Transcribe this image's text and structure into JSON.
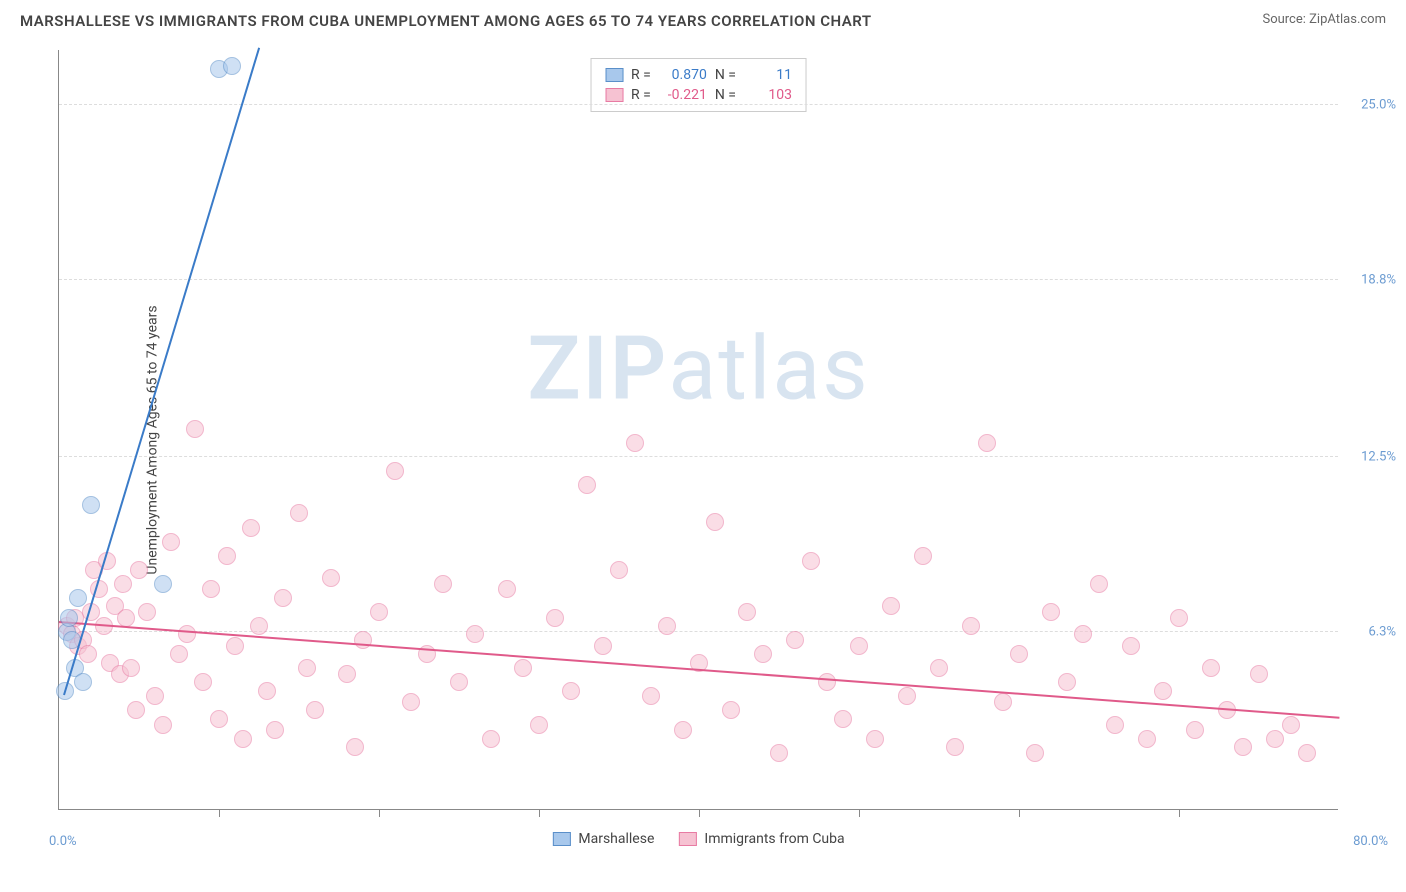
{
  "header": {
    "title": "MARSHALLESE VS IMMIGRANTS FROM CUBA UNEMPLOYMENT AMONG AGES 65 TO 74 YEARS CORRELATION CHART",
    "source": "Source: ZipAtlas.com"
  },
  "chart": {
    "type": "scatter",
    "ylabel": "Unemployment Among Ages 65 to 74 years",
    "xlim": [
      0,
      80
    ],
    "ylim": [
      0,
      27
    ],
    "xlabel_min": "0.0%",
    "xlabel_max": "80.0%",
    "ytick_labels": [
      "6.3%",
      "12.5%",
      "18.8%",
      "25.0%"
    ],
    "ytick_values": [
      6.3,
      12.5,
      18.8,
      25.0
    ],
    "xtick_positions": [
      10,
      20,
      30,
      40,
      50,
      60,
      70
    ],
    "background_color": "#ffffff",
    "grid_color": "#dddddd",
    "axis_color": "#888888",
    "tick_label_color": "#6b9bd1",
    "marker_radius": 9,
    "marker_stroke_width": 1.5,
    "trend_line_width": 2,
    "watermark": "ZIPatlas",
    "series": [
      {
        "name": "Marshallese",
        "fill_color": "#a8c8ec",
        "stroke_color": "#5a8fc9",
        "fill_opacity": 0.55,
        "stats": {
          "R_label": "R =",
          "R": "0.870",
          "N_label": "N =",
          "N": "11"
        },
        "stats_color": "#3a7bc8",
        "trend": {
          "x1": 0.3,
          "y1": 4.0,
          "x2": 12.5,
          "y2": 27.0,
          "color": "#3a7bc8"
        },
        "points": [
          [
            0.4,
            4.2
          ],
          [
            0.5,
            6.3
          ],
          [
            0.6,
            6.8
          ],
          [
            0.8,
            6.0
          ],
          [
            1.0,
            5.0
          ],
          [
            1.2,
            7.5
          ],
          [
            1.5,
            4.5
          ],
          [
            2.0,
            10.8
          ],
          [
            6.5,
            8.0
          ],
          [
            10.0,
            26.3
          ],
          [
            10.8,
            26.4
          ]
        ]
      },
      {
        "name": "Immigrants from Cuba",
        "fill_color": "#f6c2d2",
        "stroke_color": "#e87ba3",
        "fill_opacity": 0.55,
        "stats": {
          "R_label": "R =",
          "R": "-0.221",
          "N_label": "N =",
          "N": "103"
        },
        "stats_color": "#e05a8a",
        "trend": {
          "x1": 0,
          "y1": 6.6,
          "x2": 80,
          "y2": 3.2,
          "color": "#e05a8a"
        },
        "points": [
          [
            0.5,
            6.5
          ],
          [
            0.8,
            6.2
          ],
          [
            1.0,
            6.8
          ],
          [
            1.2,
            5.8
          ],
          [
            1.5,
            6.0
          ],
          [
            1.8,
            5.5
          ],
          [
            2.0,
            7.0
          ],
          [
            2.2,
            8.5
          ],
          [
            2.5,
            7.8
          ],
          [
            2.8,
            6.5
          ],
          [
            3.0,
            8.8
          ],
          [
            3.2,
            5.2
          ],
          [
            3.5,
            7.2
          ],
          [
            3.8,
            4.8
          ],
          [
            4.0,
            8.0
          ],
          [
            4.2,
            6.8
          ],
          [
            4.5,
            5.0
          ],
          [
            4.8,
            3.5
          ],
          [
            5.0,
            8.5
          ],
          [
            5.5,
            7.0
          ],
          [
            6.0,
            4.0
          ],
          [
            6.5,
            3.0
          ],
          [
            7.0,
            9.5
          ],
          [
            7.5,
            5.5
          ],
          [
            8.0,
            6.2
          ],
          [
            8.5,
            13.5
          ],
          [
            9.0,
            4.5
          ],
          [
            9.5,
            7.8
          ],
          [
            10.0,
            3.2
          ],
          [
            10.5,
            9.0
          ],
          [
            11.0,
            5.8
          ],
          [
            11.5,
            2.5
          ],
          [
            12.0,
            10.0
          ],
          [
            12.5,
            6.5
          ],
          [
            13.0,
            4.2
          ],
          [
            13.5,
            2.8
          ],
          [
            14.0,
            7.5
          ],
          [
            15.0,
            10.5
          ],
          [
            15.5,
            5.0
          ],
          [
            16.0,
            3.5
          ],
          [
            17.0,
            8.2
          ],
          [
            18.0,
            4.8
          ],
          [
            18.5,
            2.2
          ],
          [
            19.0,
            6.0
          ],
          [
            20.0,
            7.0
          ],
          [
            21.0,
            12.0
          ],
          [
            22.0,
            3.8
          ],
          [
            23.0,
            5.5
          ],
          [
            24.0,
            8.0
          ],
          [
            25.0,
            4.5
          ],
          [
            26.0,
            6.2
          ],
          [
            27.0,
            2.5
          ],
          [
            28.0,
            7.8
          ],
          [
            29.0,
            5.0
          ],
          [
            30.0,
            3.0
          ],
          [
            31.0,
            6.8
          ],
          [
            32.0,
            4.2
          ],
          [
            33.0,
            11.5
          ],
          [
            34.0,
            5.8
          ],
          [
            35.0,
            8.5
          ],
          [
            36.0,
            13.0
          ],
          [
            37.0,
            4.0
          ],
          [
            38.0,
            6.5
          ],
          [
            39.0,
            2.8
          ],
          [
            40.0,
            5.2
          ],
          [
            41.0,
            10.2
          ],
          [
            42.0,
            3.5
          ],
          [
            43.0,
            7.0
          ],
          [
            44.0,
            5.5
          ],
          [
            45.0,
            2.0
          ],
          [
            46.0,
            6.0
          ],
          [
            47.0,
            8.8
          ],
          [
            48.0,
            4.5
          ],
          [
            49.0,
            3.2
          ],
          [
            50.0,
            5.8
          ],
          [
            51.0,
            2.5
          ],
          [
            52.0,
            7.2
          ],
          [
            53.0,
            4.0
          ],
          [
            54.0,
            9.0
          ],
          [
            55.0,
            5.0
          ],
          [
            56.0,
            2.2
          ],
          [
            57.0,
            6.5
          ],
          [
            58.0,
            13.0
          ],
          [
            59.0,
            3.8
          ],
          [
            60.0,
            5.5
          ],
          [
            61.0,
            2.0
          ],
          [
            62.0,
            7.0
          ],
          [
            63.0,
            4.5
          ],
          [
            64.0,
            6.2
          ],
          [
            65.0,
            8.0
          ],
          [
            66.0,
            3.0
          ],
          [
            67.0,
            5.8
          ],
          [
            68.0,
            2.5
          ],
          [
            69.0,
            4.2
          ],
          [
            70.0,
            6.8
          ],
          [
            71.0,
            2.8
          ],
          [
            72.0,
            5.0
          ],
          [
            73.0,
            3.5
          ],
          [
            74.0,
            2.2
          ],
          [
            75.0,
            4.8
          ],
          [
            76.0,
            2.5
          ],
          [
            77.0,
            3.0
          ],
          [
            78.0,
            2.0
          ]
        ]
      }
    ],
    "legend_labels": [
      "Marshallese",
      "Immigrants from Cuba"
    ]
  }
}
